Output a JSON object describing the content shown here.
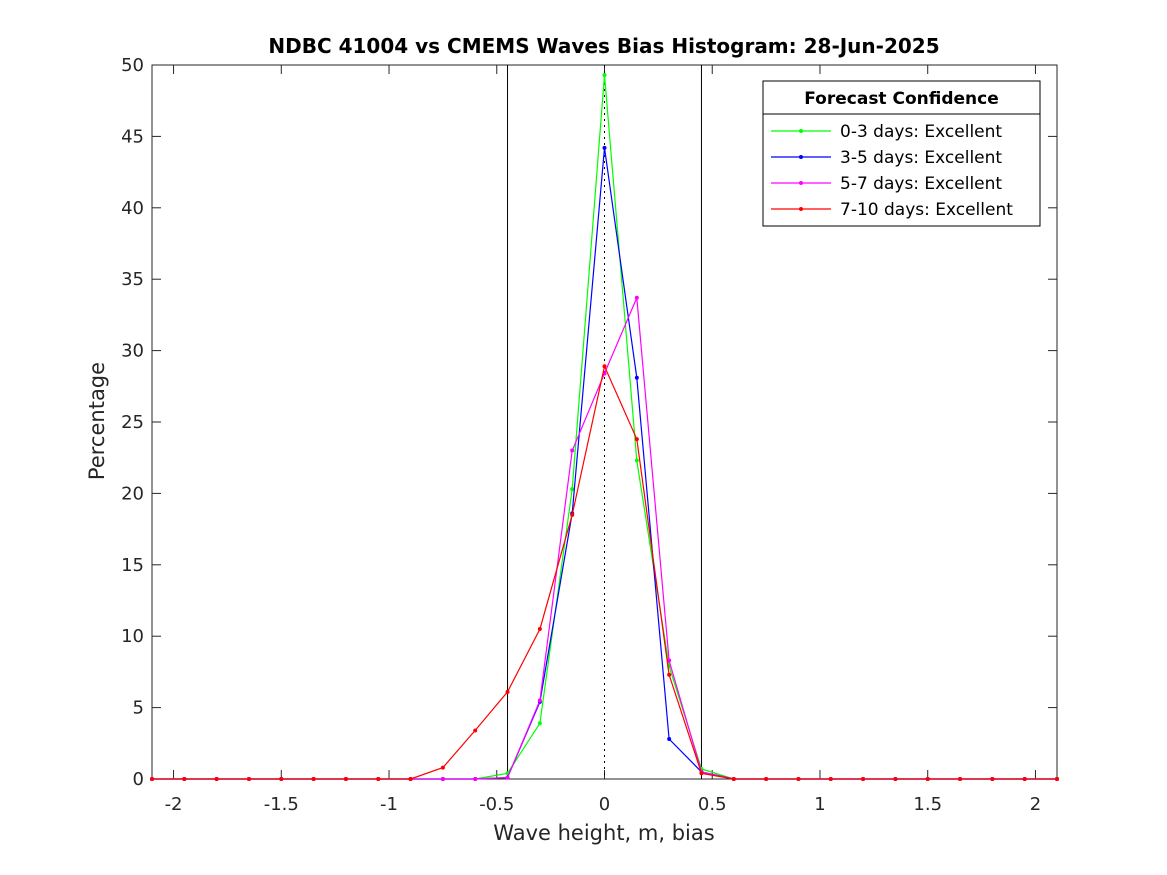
{
  "chart_data": {
    "type": "line",
    "title": "NDBC 41004 vs CMEMS Waves Bias Histogram: 28-Jun-2025",
    "xlabel": "Wave height, m, bias",
    "ylabel": "Percentage",
    "xlim": [
      -2.1,
      2.1
    ],
    "ylim": [
      0,
      50
    ],
    "xticks": [
      -2,
      -1.5,
      -1,
      -0.5,
      0,
      0.5,
      1,
      1.5,
      2
    ],
    "xtick_labels": [
      "-2",
      "-1.5",
      "-1",
      "-0.5",
      "0",
      "0.5",
      "1",
      "1.5",
      "2"
    ],
    "yticks": [
      0,
      5,
      10,
      15,
      20,
      25,
      30,
      35,
      40,
      45,
      50
    ],
    "ytick_labels": [
      "0",
      "5",
      "10",
      "15",
      "20",
      "25",
      "30",
      "35",
      "40",
      "45",
      "50"
    ],
    "grid": false,
    "legend_title": "Forecast Confidence",
    "legend_position": "top-right",
    "vertical_lines": [
      -0.45,
      0.45
    ],
    "dotted_line_x": 0,
    "x": [
      -2.1,
      -1.95,
      -1.8,
      -1.65,
      -1.5,
      -1.35,
      -1.2,
      -1.05,
      -0.9,
      -0.75,
      -0.6,
      -0.45,
      -0.3,
      -0.15,
      0,
      0.15,
      0.3,
      0.45,
      0.6,
      0.75,
      0.9,
      1.05,
      1.2,
      1.35,
      1.5,
      1.65,
      1.8,
      1.95,
      2.1
    ],
    "series": [
      {
        "name": "0-3 days: Excellent",
        "color": "#00ff00",
        "values": [
          0,
          0,
          0,
          0,
          0,
          0,
          0,
          0,
          0,
          0,
          0,
          0.4,
          3.9,
          20.3,
          49.3,
          22.3,
          7.9,
          0.7,
          0,
          0,
          0,
          0,
          0,
          0,
          0,
          0,
          0,
          0,
          0
        ]
      },
      {
        "name": "3-5 days: Excellent",
        "color": "#0000ff",
        "values": [
          0,
          0,
          0,
          0,
          0,
          0,
          0,
          0,
          0,
          0,
          0,
          0.1,
          5.4,
          18.6,
          44.2,
          28.1,
          2.8,
          0.5,
          0,
          0,
          0,
          0,
          0,
          0,
          0,
          0,
          0,
          0,
          0
        ]
      },
      {
        "name": "5-7 days: Excellent",
        "color": "#ff00ff",
        "values": [
          0,
          0,
          0,
          0,
          0,
          0,
          0,
          0,
          0,
          0,
          0,
          0.1,
          5.5,
          23.0,
          28.4,
          33.7,
          8.3,
          0.5,
          0,
          0,
          0,
          0,
          0,
          0,
          0,
          0,
          0,
          0,
          0
        ]
      },
      {
        "name": "7-10 days: Excellent",
        "color": "#ff0000",
        "values": [
          0,
          0,
          0,
          0,
          0,
          0,
          0,
          0,
          0,
          0.8,
          3.4,
          6.1,
          10.5,
          18.5,
          28.9,
          23.8,
          7.3,
          0.4,
          0,
          0,
          0,
          0,
          0,
          0,
          0,
          0,
          0,
          0,
          0
        ]
      }
    ]
  }
}
